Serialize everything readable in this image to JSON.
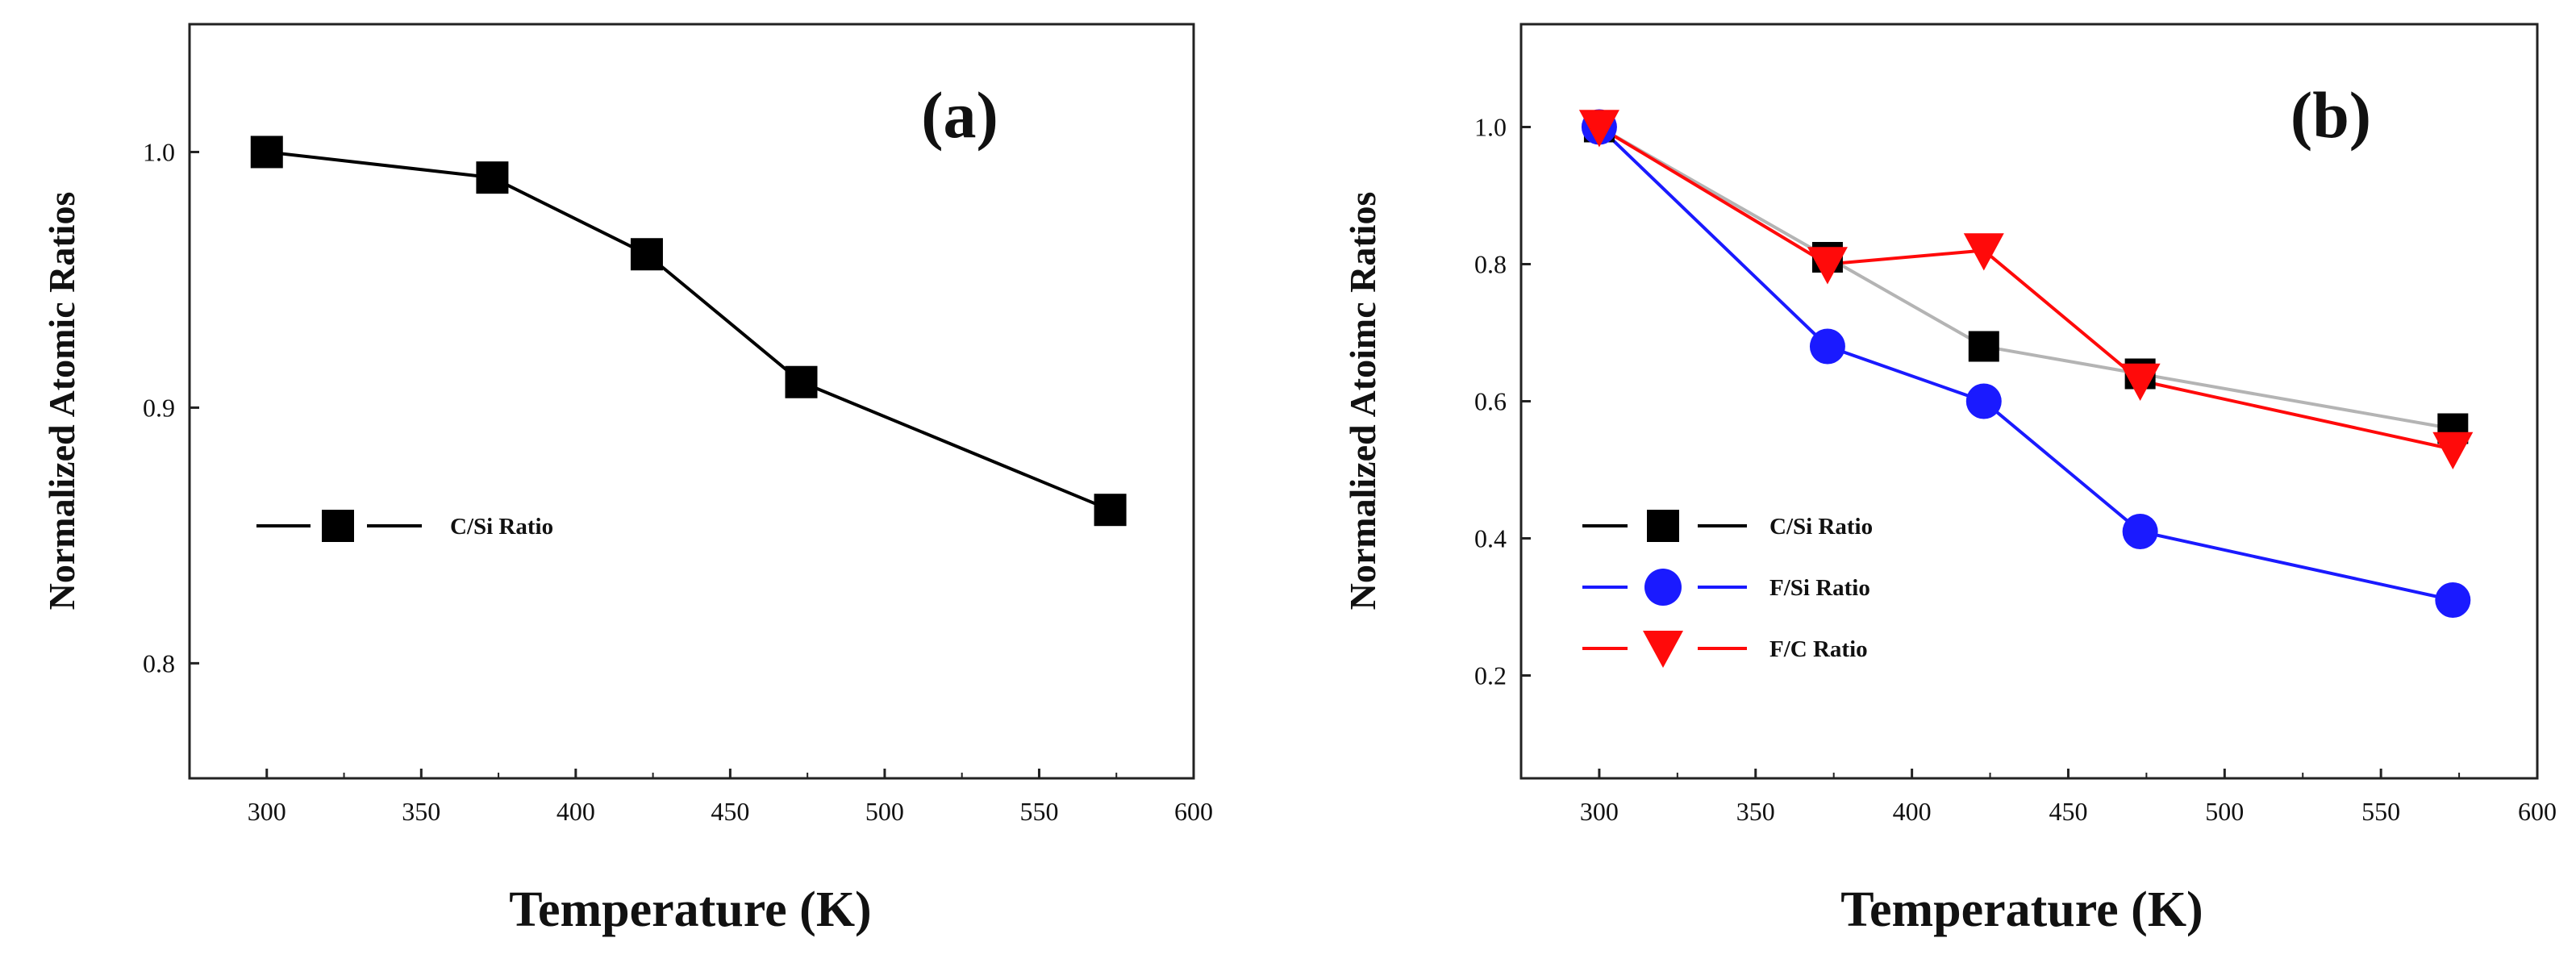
{
  "chart_data": [
    {
      "type": "line",
      "panel_label": "(a)",
      "xlabel": "Temperature (K)",
      "ylabel": "Normalized Atomic Ratios",
      "xlim": [
        275,
        600
      ],
      "ylim": [
        0.755,
        1.05
      ],
      "xticks": [
        300,
        350,
        400,
        450,
        500,
        550,
        600
      ],
      "yticks": [
        0.8,
        0.9,
        1.0
      ],
      "ytick_labels": [
        "0.8",
        "0.9",
        "1.0"
      ],
      "legend_position": "middle-left",
      "series": [
        {
          "name": "C/Si Ratio",
          "color": "#000000",
          "marker": "square",
          "x": [
            300,
            373,
            423,
            473,
            573
          ],
          "y": [
            1.0,
            0.99,
            0.96,
            0.91,
            0.86
          ]
        }
      ]
    },
    {
      "type": "line",
      "panel_label": "(b)",
      "xlabel": "Temperature (K)",
      "ylabel": "Normalized Atoimc Ratios",
      "xlim": [
        275,
        600
      ],
      "ylim": [
        0.05,
        1.15
      ],
      "xticks": [
        300,
        350,
        400,
        450,
        500,
        550,
        600
      ],
      "yticks": [
        0.2,
        0.4,
        0.6,
        0.8,
        1.0
      ],
      "ytick_labels": [
        "0.2",
        "0.4",
        "0.6",
        "0.8",
        "1.0"
      ],
      "legend_position": "lower-left",
      "series": [
        {
          "name": "C/Si Ratio",
          "color": "#000000",
          "line_color": "#b4b4b4",
          "marker": "square",
          "x": [
            300,
            373,
            423,
            473,
            573
          ],
          "y": [
            1.0,
            0.81,
            0.68,
            0.64,
            0.56
          ]
        },
        {
          "name": "F/Si Ratio",
          "color": "#1a1aff",
          "marker": "circle",
          "x": [
            300,
            373,
            423,
            473,
            573
          ],
          "y": [
            1.0,
            0.68,
            0.6,
            0.41,
            0.31
          ]
        },
        {
          "name": "F/C Ratio",
          "color": "#ff0a0a",
          "marker": "triangle-down",
          "x": [
            300,
            373,
            423,
            473,
            573
          ],
          "y": [
            1.0,
            0.8,
            0.82,
            0.63,
            0.53
          ]
        }
      ]
    }
  ]
}
